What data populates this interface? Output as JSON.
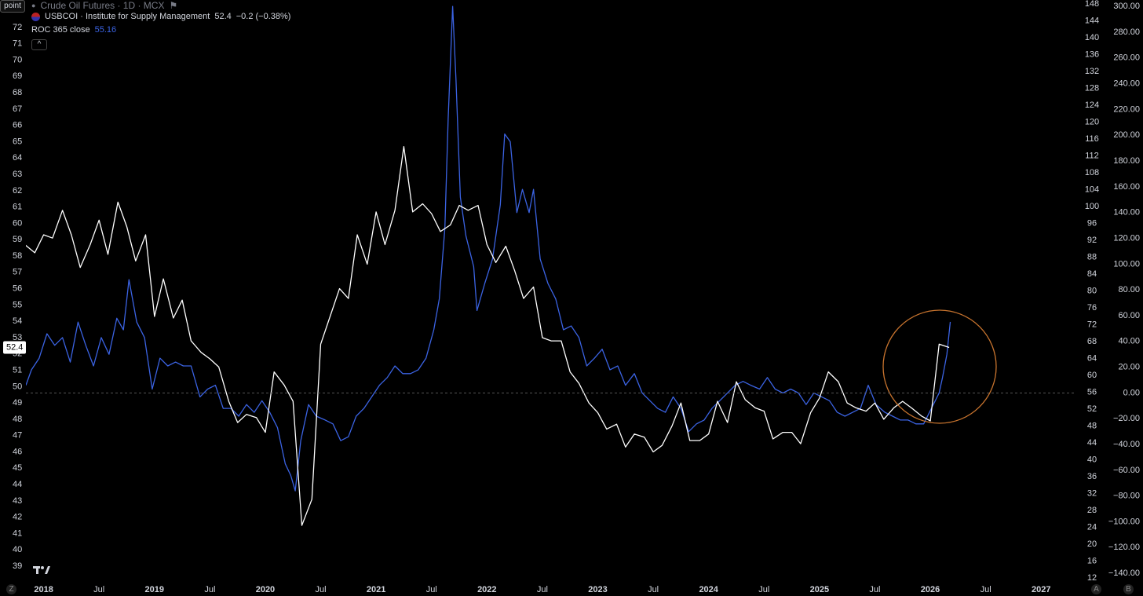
{
  "ui": {
    "point_button": "point",
    "buttons": [
      "Z",
      "A",
      "B"
    ]
  },
  "chart_data": {
    "type": "line",
    "title": "Crude Oil Futures · 1D · MCX",
    "xlim": [
      2017.84,
      2027.31
    ],
    "xticks": [
      2018,
      {
        "value": 2018.5,
        "label": "Jul"
      },
      2019,
      {
        "value": 2019.5,
        "label": "Jul"
      },
      2020,
      {
        "value": 2020.5,
        "label": "Jul"
      },
      2021,
      {
        "value": 2021.5,
        "label": "Jul"
      },
      2022,
      {
        "value": 2022.5,
        "label": "Jul"
      },
      2023,
      {
        "value": 2023.5,
        "label": "Jul"
      },
      2024,
      {
        "value": 2024.5,
        "label": "Jul"
      },
      2025,
      {
        "value": 2025.5,
        "label": "Jul"
      },
      2026,
      {
        "value": 2026.5,
        "label": "Jul"
      },
      2027
    ],
    "ylim": [
      38.09,
      73.68
    ],
    "yticks": [
      39,
      40,
      41,
      42,
      43,
      44,
      45,
      46,
      47,
      48,
      49,
      50,
      51,
      52,
      53,
      54,
      55,
      56,
      57,
      58,
      59,
      60,
      61,
      62,
      63,
      64,
      65,
      66,
      67,
      68,
      69,
      70,
      71,
      72
    ],
    "y3lim": [
      11.26,
      148.93
    ],
    "y3ticks": [
      12,
      16,
      20,
      24,
      28,
      32,
      36,
      40,
      44,
      48,
      52,
      56,
      60,
      64,
      68,
      72,
      76,
      80,
      84,
      88,
      92,
      96,
      100,
      104,
      108,
      112,
      116,
      120,
      124,
      128,
      132,
      136,
      140,
      144,
      148
    ],
    "y2lim": [
      -146,
      305
    ],
    "y2ticks": [
      {
        "value": 300,
        "label": "300.00"
      },
      {
        "value": 280,
        "label": "280.00"
      },
      {
        "value": 260,
        "label": "260.00"
      },
      {
        "value": 240,
        "label": "240.00"
      },
      {
        "value": 220,
        "label": "220.00"
      },
      {
        "value": 200,
        "label": "200.00"
      },
      {
        "value": 180,
        "label": "180.00"
      },
      {
        "value": 160,
        "label": "160.00"
      },
      {
        "value": 140,
        "label": "140.00"
      },
      {
        "value": 120,
        "label": "120.00"
      },
      {
        "value": 100,
        "label": "100.00"
      },
      {
        "value": 80,
        "label": "80.00"
      },
      {
        "value": 60,
        "label": "60.00"
      },
      {
        "value": 40,
        "label": "40.00"
      },
      {
        "value": 20,
        "label": "20.00"
      },
      {
        "value": 0,
        "label": "0.00"
      },
      {
        "value": -20,
        "label": "−20.00"
      },
      {
        "value": -40,
        "label": "−40.00"
      },
      {
        "value": -60,
        "label": "−60.00"
      },
      {
        "value": -80,
        "label": "−80.00"
      },
      {
        "value": -100,
        "label": "−100.00"
      },
      {
        "value": -120,
        "label": "−120.00"
      },
      {
        "value": -140,
        "label": "−140.00"
      }
    ],
    "series": [
      {
        "name": "USBCOI · Institute for Supply Management",
        "color": "#ffffff",
        "change_label": "−0.2 (−0.38%)",
        "x": [
          2017.83,
          2017.92,
          2018.0,
          2018.08,
          2018.17,
          2018.25,
          2018.33,
          2018.42,
          2018.5,
          2018.58,
          2018.67,
          2018.75,
          2018.83,
          2018.92,
          2019.0,
          2019.08,
          2019.17,
          2019.25,
          2019.33,
          2019.42,
          2019.5,
          2019.58,
          2019.67,
          2019.75,
          2019.83,
          2019.92,
          2020.0,
          2020.08,
          2020.17,
          2020.25,
          2020.33,
          2020.42,
          2020.5,
          2020.58,
          2020.67,
          2020.75,
          2020.83,
          2020.92,
          2021.0,
          2021.08,
          2021.17,
          2021.25,
          2021.33,
          2021.42,
          2021.5,
          2021.58,
          2021.67,
          2021.75,
          2021.83,
          2021.92,
          2022.0,
          2022.08,
          2022.17,
          2022.25,
          2022.33,
          2022.42,
          2022.5,
          2022.58,
          2022.67,
          2022.75,
          2022.83,
          2022.92,
          2023.0,
          2023.08,
          2023.17,
          2023.25,
          2023.33,
          2023.42,
          2023.5,
          2023.58,
          2023.67,
          2023.75,
          2023.83,
          2023.92,
          2024.0,
          2024.08,
          2024.17,
          2024.25,
          2024.33,
          2024.42,
          2024.5,
          2024.58,
          2024.67,
          2024.75,
          2024.83,
          2024.92,
          2025.0,
          2025.08,
          2025.17,
          2025.25,
          2025.33,
          2025.42,
          2025.5,
          2025.58,
          2025.67,
          2025.75,
          2025.83,
          2025.92,
          2026.0,
          2026.08,
          2026.17
        ],
        "values": [
          58.7,
          58.2,
          59.3,
          59.1,
          60.8,
          59.3,
          57.3,
          58.7,
          60.2,
          58.1,
          61.3,
          59.8,
          57.7,
          59.3,
          54.3,
          56.6,
          54.2,
          55.3,
          52.8,
          52.1,
          51.7,
          51.2,
          49.1,
          47.8,
          48.3,
          48.1,
          47.2,
          50.9,
          50.1,
          49.1,
          41.5,
          43.1,
          52.6,
          54.2,
          56.0,
          55.4,
          59.3,
          57.5,
          60.7,
          58.7,
          60.8,
          64.7,
          60.7,
          61.2,
          60.6,
          59.5,
          59.9,
          61.1,
          60.8,
          61.1,
          58.7,
          57.6,
          58.6,
          57.1,
          55.4,
          56.1,
          53.0,
          52.8,
          52.8,
          50.9,
          50.2,
          49.0,
          48.4,
          47.4,
          47.7,
          46.3,
          47.1,
          46.9,
          46.0,
          46.4,
          47.6,
          49.0,
          46.7,
          46.7,
          47.1,
          49.1,
          47.8,
          50.3,
          49.2,
          48.7,
          48.5,
          46.8,
          47.2,
          47.2,
          46.5,
          48.4,
          49.3,
          50.9,
          50.3,
          49.0,
          48.7,
          48.5,
          49.0,
          48.0,
          48.7,
          49.1,
          48.7,
          48.2,
          47.9,
          52.6,
          52.4
        ]
      },
      {
        "name": "ROC 365 close",
        "color": "#3b63e3",
        "axis": "y2",
        "x": [
          2017.84,
          2017.89,
          2017.96,
          2018.03,
          2018.1,
          2018.17,
          2018.24,
          2018.31,
          2018.38,
          2018.45,
          2018.52,
          2018.59,
          2018.66,
          2018.72,
          2018.77,
          2018.84,
          2018.91,
          2018.98,
          2019.05,
          2019.12,
          2019.19,
          2019.26,
          2019.33,
          2019.41,
          2019.48,
          2019.55,
          2019.62,
          2019.69,
          2019.76,
          2019.83,
          2019.9,
          2019.97,
          2020.04,
          2020.11,
          2020.18,
          2020.23,
          2020.27,
          2020.32,
          2020.39,
          2020.46,
          2020.54,
          2020.61,
          2020.68,
          2020.75,
          2020.82,
          2020.89,
          2020.96,
          2021.03,
          2021.1,
          2021.17,
          2021.24,
          2021.31,
          2021.38,
          2021.45,
          2021.52,
          2021.57,
          2021.62,
          2021.65,
          2021.69,
          2021.72,
          2021.76,
          2021.81,
          2021.88,
          2021.91,
          2021.98,
          2022.05,
          2022.12,
          2022.16,
          2022.21,
          2022.27,
          2022.32,
          2022.38,
          2022.42,
          2022.48,
          2022.55,
          2022.62,
          2022.69,
          2022.76,
          2022.83,
          2022.9,
          2022.97,
          2023.04,
          2023.11,
          2023.18,
          2023.25,
          2023.33,
          2023.4,
          2023.47,
          2023.54,
          2023.61,
          2023.68,
          2023.75,
          2023.82,
          2023.89,
          2023.96,
          2024.03,
          2024.1,
          2024.17,
          2024.24,
          2024.31,
          2024.38,
          2024.46,
          2024.53,
          2024.6,
          2024.67,
          2024.74,
          2024.81,
          2024.88,
          2024.95,
          2025.02,
          2025.09,
          2025.16,
          2025.23,
          2025.3,
          2025.37,
          2025.44,
          2025.51,
          2025.59,
          2025.66,
          2025.73,
          2025.8,
          2025.87,
          2025.94,
          2026.01,
          2026.08,
          2026.11,
          2026.15,
          2026.18
        ],
        "values": [
          6,
          18,
          27,
          46,
          37,
          43,
          24,
          55,
          37,
          21,
          43,
          30,
          58,
          49,
          88,
          55,
          43,
          3,
          27,
          21,
          24,
          21,
          21,
          -3,
          3,
          6,
          -12,
          -12,
          -18,
          -9,
          -15,
          -6,
          -15,
          -27,
          -55,
          -64,
          -76,
          -37,
          -9,
          -18,
          -21,
          -24,
          -37,
          -34,
          -18,
          -12,
          -3,
          6,
          12,
          21,
          15,
          15,
          18,
          27,
          49,
          73,
          128,
          213,
          300,
          244,
          152,
          122,
          98,
          64,
          85,
          104,
          146,
          201,
          195,
          140,
          158,
          140,
          158,
          104,
          85,
          73,
          49,
          52,
          43,
          21,
          27,
          34,
          18,
          21,
          6,
          15,
          0,
          -6,
          -12,
          -15,
          -3,
          -12,
          -30,
          -24,
          -21,
          -12,
          -6,
          0,
          6,
          9,
          6,
          3,
          12,
          3,
          0,
          3,
          0,
          -9,
          0,
          -3,
          -6,
          -15,
          -18,
          -15,
          -12,
          6,
          -9,
          -15,
          -18,
          -21,
          -21,
          -24,
          -24,
          -12,
          0,
          12,
          30,
          55.16
        ]
      }
    ]
  }
}
